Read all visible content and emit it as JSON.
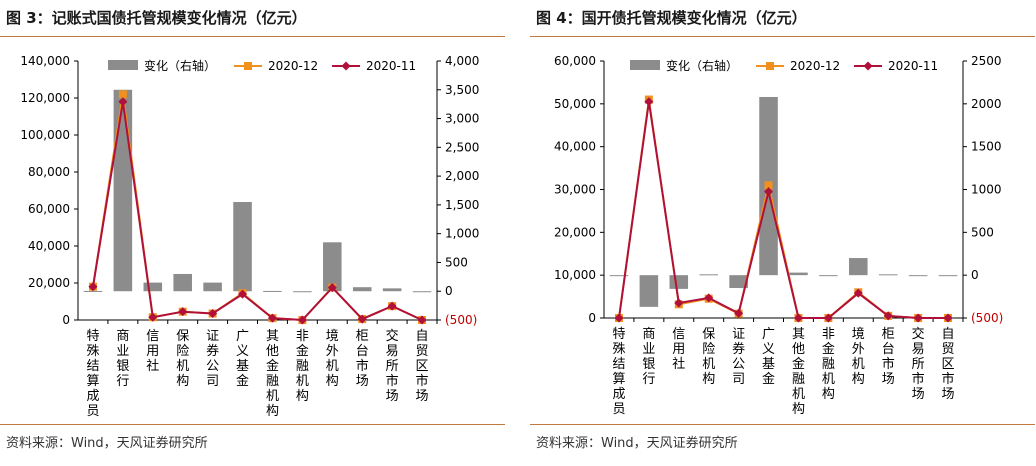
{
  "colors": {
    "bar": "#8c8c8c",
    "series_2020_12": "#f0901e",
    "series_2020_11": "#b0103a",
    "negative_tick": "#c00000",
    "rule": "#c07a3f"
  },
  "charts": [
    {
      "figure_title": "图 3：记账式国债托管规模变化情况（亿元）",
      "source": "资料来源：Wind，天风证券研究所"
    },
    {
      "figure_title": "图 4：国开债托管规模变化情况（亿元）",
      "source": "资料来源：Wind，天风证券研究所"
    }
  ],
  "chart_data": [
    {
      "type": "bar+line",
      "title": "记账式国债托管规模变化情况（亿元）",
      "categories": [
        "特殊结算成员",
        "商业银行",
        "信用社",
        "保险机构",
        "证券公司",
        "广义基金",
        "其他金融机构",
        "非金融机构",
        "境外机构",
        "柜台市场",
        "交易所市场",
        "自贸区市场"
      ],
      "bars": {
        "name": "变化（右轴）",
        "axis": "right",
        "values": [
          5,
          3500,
          150,
          300,
          150,
          1550,
          5,
          0,
          850,
          70,
          50,
          0
        ]
      },
      "series": [
        {
          "name": "2020-12",
          "axis": "left",
          "values": [
            18000,
            122000,
            1500,
            4500,
            3500,
            14500,
            1000,
            0,
            17500,
            500,
            7500,
            0
          ]
        },
        {
          "name": "2020-11",
          "axis": "left",
          "values": [
            18000,
            118000,
            1500,
            4500,
            3500,
            14000,
            1000,
            0,
            17500,
            500,
            7500,
            0
          ]
        }
      ],
      "left_axis": {
        "min": 0,
        "max": 140000,
        "ticks": [
          0,
          20000,
          40000,
          60000,
          80000,
          100000,
          120000,
          140000
        ],
        "tick_labels": [
          "0",
          "20,000",
          "40,000",
          "60,000",
          "80,000",
          "100,000",
          "120,000",
          "140,000"
        ]
      },
      "right_axis": {
        "min": -500,
        "max": 4000,
        "ticks": [
          -500,
          0,
          500,
          1000,
          1500,
          2000,
          2500,
          3000,
          3500,
          4000
        ],
        "tick_labels": [
          "(500)",
          "0",
          "500",
          "1,000",
          "1,500",
          "2,000",
          "2,500",
          "3,000",
          "3,500",
          "4,000"
        ]
      },
      "legend": [
        "变化（右轴）",
        "2020-12",
        "2020-11"
      ]
    },
    {
      "type": "bar+line",
      "title": "国开债托管规模变化情况（亿元）",
      "categories": [
        "特殊结算成员",
        "商业银行",
        "信用社",
        "保险机构",
        "证券公司",
        "广义基金",
        "其他金融机构",
        "非金融机构",
        "境外机构",
        "柜台市场",
        "交易所市场",
        "自贸区市场"
      ],
      "bars": {
        "name": "变化（右轴）",
        "axis": "right",
        "values": [
          -5,
          -370,
          -160,
          10,
          -150,
          2080,
          30,
          0,
          200,
          10,
          0,
          0
        ]
      },
      "series": [
        {
          "name": "2020-12",
          "axis": "left",
          "values": [
            0,
            51000,
            3200,
            4500,
            1000,
            31000,
            0,
            0,
            6000,
            500,
            0,
            0
          ]
        },
        {
          "name": "2020-11",
          "axis": "left",
          "values": [
            0,
            50500,
            3500,
            4700,
            1100,
            29500,
            0,
            0,
            5800,
            500,
            0,
            0
          ]
        }
      ],
      "left_axis": {
        "min": 0,
        "max": 60000,
        "ticks": [
          0,
          10000,
          20000,
          30000,
          40000,
          50000,
          60000
        ],
        "tick_labels": [
          "0",
          "10,000",
          "20,000",
          "30,000",
          "40,000",
          "50,000",
          "60,000"
        ]
      },
      "right_axis": {
        "min": -500,
        "max": 2500,
        "ticks": [
          -500,
          0,
          500,
          1000,
          1500,
          2000,
          2500
        ],
        "tick_labels": [
          "(500)",
          "0",
          "500",
          "1000",
          "1500",
          "2000",
          "2500"
        ]
      },
      "legend": [
        "变化（右轴）",
        "2020-12",
        "2020-11"
      ]
    }
  ]
}
